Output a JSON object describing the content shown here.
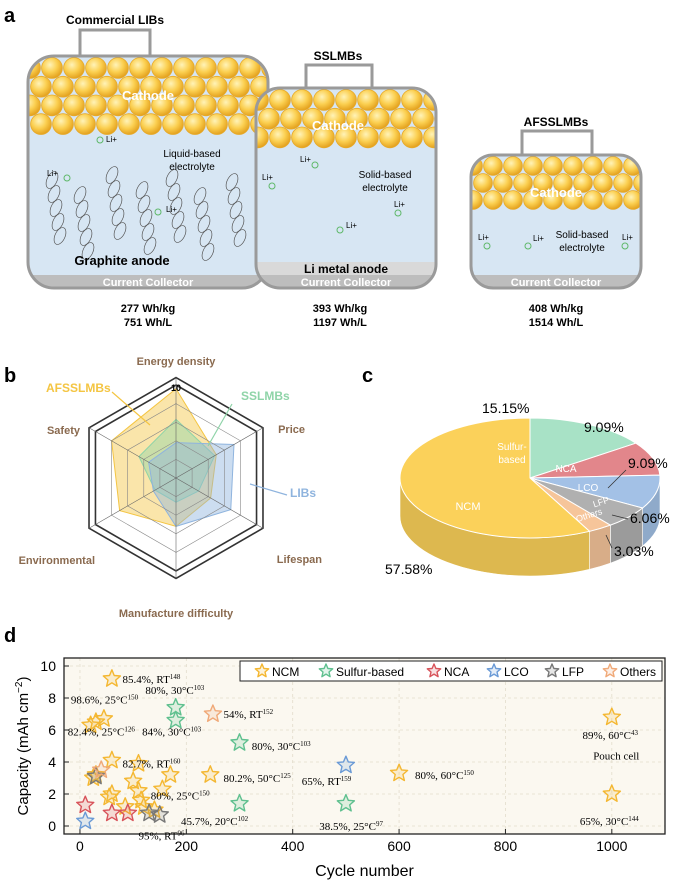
{
  "panel_labels": {
    "a": "a",
    "b": "b",
    "c": "c",
    "d": "d"
  },
  "panel_a": {
    "cells": [
      {
        "title": "Commercial LIBs",
        "cathode": "Cathode",
        "electrolyte_l1": "Liquid-based",
        "electrolyte_l2": "electrolyte",
        "anode": "Graphite anode",
        "collector": "Current Collector",
        "ion": "Li+",
        "gravimetric": "277 Wh/kg",
        "volumetric": "751 Wh/L"
      },
      {
        "title": "SSLMBs",
        "cathode": "Cathode",
        "electrolyte_l1": "Solid-based",
        "electrolyte_l2": "electrolyte",
        "anode": "Li metal anode",
        "collector": "Current Collector",
        "ion": "Li+",
        "gravimetric": "393 Wh/kg",
        "volumetric": "1197 Wh/L"
      },
      {
        "title": "AFSSLMBs",
        "cathode": "Cathode",
        "electrolyte_l1": "Solid-based",
        "electrolyte_l2": "electrolyte",
        "anode": "",
        "collector": "Current Collector",
        "ion": "Li+",
        "gravimetric": "408 Wh/kg",
        "volumetric": "1514 Wh/L"
      }
    ]
  },
  "colors": {
    "gold": "#f4b731",
    "gold_fill": "#fbd15a",
    "sulfur": "#8fd4b2",
    "nca": "#e0777d",
    "lco": "#95b6de",
    "lfp": "#888888",
    "others": "#f2b98b",
    "electrolyte": "#d7e6f3",
    "collector": "#bdbdbd"
  },
  "chart_data": [
    {
      "type": "radar",
      "axes": [
        "Energy density",
        "Price",
        "Lifespan",
        "Manufacture difficulty",
        "Environmental",
        "Safety"
      ],
      "scale_max_label": "10",
      "rmax": 10,
      "series": [
        {
          "name": "AFSSLMBs",
          "color": "#f4c542",
          "values": [
            9.6,
            5.0,
            4.3,
            5.2,
            7.0,
            8.0
          ]
        },
        {
          "name": "SSLMBs",
          "color": "#8fd4a8",
          "values": [
            6.3,
            4.8,
            2.8,
            2.6,
            2.6,
            4.6
          ]
        },
        {
          "name": "LIBs",
          "color": "#8fb4de",
          "values": [
            3.8,
            7.2,
            6.8,
            5.2,
            2.8,
            3.4
          ]
        }
      ]
    },
    {
      "type": "pie",
      "slices": [
        {
          "label": "NCM",
          "value": 57.58,
          "percent_label": "57.58%",
          "color": "#fbd15a"
        },
        {
          "label": "Sulfur-based",
          "value": 15.15,
          "percent_label": "15.15%",
          "color": "#a8e2c6"
        },
        {
          "label": "NCA",
          "value": 9.09,
          "percent_label": "9.09%",
          "color": "#e2868b"
        },
        {
          "label": "LCO",
          "value": 9.09,
          "percent_label": "9.09%",
          "color": "#a3c1e6"
        },
        {
          "label": "LFP",
          "value": 6.06,
          "percent_label": "6.06%",
          "color": "#b0b0b0"
        },
        {
          "label": "Others",
          "value": 3.03,
          "percent_label": "3.03%",
          "color": "#f6c59a"
        }
      ]
    },
    {
      "type": "scatter",
      "xlabel": "Cycle number",
      "ylabel": "Capacity (mAh cm",
      "ylabel_sup": "−2",
      "ylabel_end": ")",
      "xlim": [
        -30,
        1100
      ],
      "ylim": [
        -0.5,
        10.5
      ],
      "xticks": [
        0,
        200,
        400,
        600,
        800,
        1000
      ],
      "yticks": [
        0,
        2,
        4,
        6,
        8,
        10
      ],
      "legend": [
        "NCM",
        "Sulfur-based",
        "NCA",
        "LCO",
        "LFP",
        "Others"
      ],
      "series": [
        {
          "name": "NCM",
          "color": "#f4b731",
          "points": [
            [
              60,
              9.2
            ],
            [
              20,
              6.3
            ],
            [
              30,
              6.5
            ],
            [
              45,
              6.7
            ],
            [
              25,
              3.0
            ],
            [
              60,
              4.1
            ],
            [
              110,
              3.9
            ],
            [
              170,
              3.2
            ],
            [
              245,
              3.2
            ],
            [
              30,
              3.2
            ],
            [
              60,
              2.0
            ],
            [
              100,
              2.8
            ],
            [
              110,
              2.2
            ],
            [
              115,
              1.6
            ],
            [
              155,
              2.3
            ],
            [
              55,
              1.8
            ],
            [
              85,
              1.2
            ],
            [
              120,
              1.2
            ],
            [
              140,
              1.0
            ],
            [
              600,
              3.3
            ],
            [
              1000,
              6.8
            ],
            [
              1000,
              2.0
            ]
          ]
        },
        {
          "name": "Sulfur-based",
          "color": "#5fc08f",
          "points": [
            [
              180,
              7.4
            ],
            [
              180,
              6.6
            ],
            [
              300,
              5.2
            ],
            [
              300,
              1.4
            ],
            [
              500,
              1.4
            ]
          ]
        },
        {
          "name": "NCA",
          "color": "#d8535a",
          "points": [
            [
              10,
              1.3
            ],
            [
              60,
              0.8
            ],
            [
              90,
              0.8
            ]
          ]
        },
        {
          "name": "LCO",
          "color": "#6a9ad6",
          "points": [
            [
              10,
              0.3
            ],
            [
              500,
              3.8
            ]
          ]
        },
        {
          "name": "LFP",
          "color": "#777777",
          "points": [
            [
              30,
              3.1
            ],
            [
              130,
              0.8
            ],
            [
              150,
              0.7
            ]
          ]
        },
        {
          "name": "Others",
          "color": "#f0a978",
          "points": [
            [
              250,
              7.0
            ],
            [
              40,
              3.5
            ]
          ]
        }
      ],
      "annotations": [
        {
          "text": "85.4%, RT",
          "ref": "148",
          "x": 80,
          "y": 9.2
        },
        {
          "text": "98.6%, 25°C",
          "ref": "150",
          "x": -17,
          "y": 7.9
        },
        {
          "text": "80%, 30°C",
          "ref": "103",
          "x": 123,
          "y": 8.5
        },
        {
          "text": "54%, RT",
          "ref": "152",
          "x": 270,
          "y": 7.0
        },
        {
          "text": "82.4%, 25°C",
          "ref": "126",
          "x": -23,
          "y": 5.9
        },
        {
          "text": "84%, 30°C",
          "ref": "103",
          "x": 117,
          "y": 5.9
        },
        {
          "text": "80%, 30°C",
          "ref": "103",
          "x": 323,
          "y": 5.0
        },
        {
          "text": "82.7%, RT",
          "ref": "160",
          "x": 80,
          "y": 3.9
        },
        {
          "text": "80.2%, 50°C",
          "ref": "125",
          "x": 270,
          "y": 3.0
        },
        {
          "text": "65%, RT",
          "ref": "159",
          "x": 417,
          "y": 2.8
        },
        {
          "text": "80%, 60°C",
          "ref": "150",
          "x": 630,
          "y": 3.2
        },
        {
          "text": "80%, 25°C",
          "ref": "150",
          "x": 133,
          "y": 1.9
        },
        {
          "text": "89%, 60°C",
          "ref": "43",
          "x": 945,
          "y": 5.7
        },
        {
          "text": "Pouch cell",
          "ref": "",
          "x": 965,
          "y": 4.4
        },
        {
          "text": "45.7%, 20°C",
          "ref": "102",
          "x": 190,
          "y": 0.3
        },
        {
          "text": "38.5%, 25°C",
          "ref": "97",
          "x": 450,
          "y": 0.0
        },
        {
          "text": "95%, RT",
          "ref": "96",
          "x": 110,
          "y": -0.6
        },
        {
          "text": "65%, 30°C",
          "ref": "144",
          "x": 940,
          "y": 0.3
        }
      ]
    }
  ]
}
